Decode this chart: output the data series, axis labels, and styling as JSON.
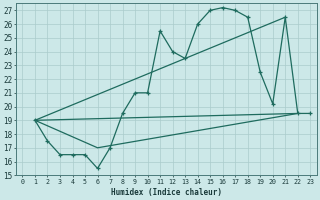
{
  "xlabel": "Humidex (Indice chaleur)",
  "xlim": [
    -0.5,
    23.5
  ],
  "ylim": [
    15,
    27.5
  ],
  "yticks": [
    15,
    16,
    17,
    18,
    19,
    20,
    21,
    22,
    23,
    24,
    25,
    26,
    27
  ],
  "xticks": [
    0,
    1,
    2,
    3,
    4,
    5,
    6,
    7,
    8,
    9,
    10,
    11,
    12,
    13,
    14,
    15,
    16,
    17,
    18,
    19,
    20,
    21,
    22,
    23
  ],
  "bg_color": "#cce8e8",
  "grid_color": "#aacccc",
  "line_color": "#1e6b5e",
  "line1_x": [
    1,
    2,
    3,
    4,
    5,
    6,
    7,
    8,
    9,
    10,
    11,
    12,
    13,
    14,
    15,
    16,
    17,
    18,
    19,
    20,
    21,
    22,
    23
  ],
  "line1_y": [
    19,
    17.5,
    16.5,
    16.5,
    16.5,
    15.5,
    17,
    19.5,
    21,
    21,
    25.5,
    24,
    23.5,
    26,
    27,
    27.2,
    27,
    26.5,
    22.5,
    20.2,
    26.5,
    19.5,
    19.5
  ],
  "line2_x": [
    1,
    22
  ],
  "line2_y": [
    19,
    19.5
  ],
  "line3_x": [
    1,
    6,
    22
  ],
  "line3_y": [
    19,
    17,
    19.5
  ],
  "line4_x": [
    1,
    21
  ],
  "line4_y": [
    19,
    26.5
  ]
}
